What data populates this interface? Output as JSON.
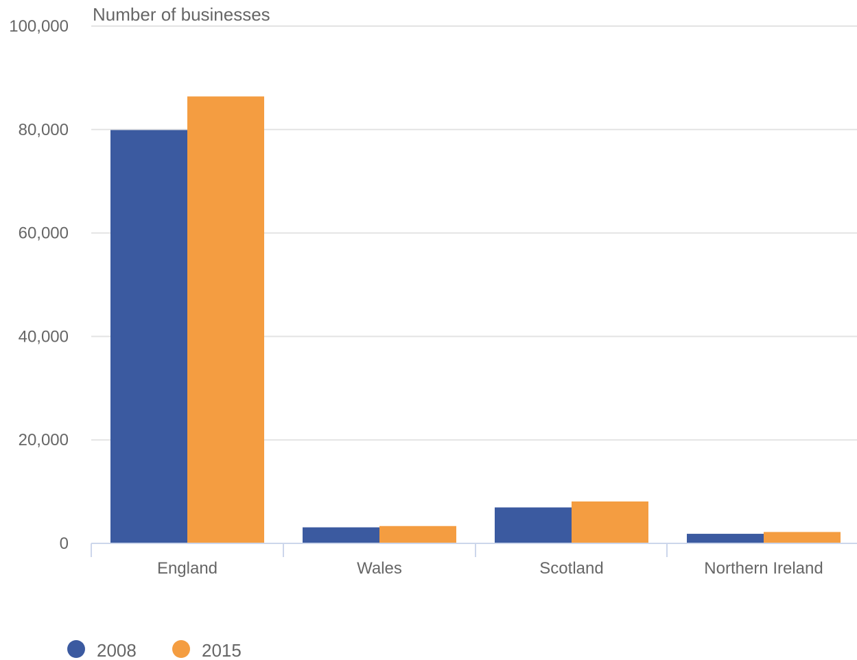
{
  "chart_data": {
    "type": "bar",
    "ylabel": "Number of businesses",
    "xlabel": "",
    "categories": [
      "England",
      "Wales",
      "Scotland",
      "Northern Ireland"
    ],
    "series": [
      {
        "name": "2008",
        "color": "#3b5aa0",
        "values": [
          79900,
          3100,
          6950,
          1850
        ]
      },
      {
        "name": "2015",
        "color": "#f49d41",
        "values": [
          86400,
          3350,
          8100,
          2200
        ]
      }
    ],
    "ylim": [
      0,
      100000
    ],
    "yticks": [
      "0",
      "20,000",
      "40,000",
      "60,000",
      "80,000",
      "100,000"
    ],
    "grid": true,
    "legend_position": "bottom-left"
  }
}
